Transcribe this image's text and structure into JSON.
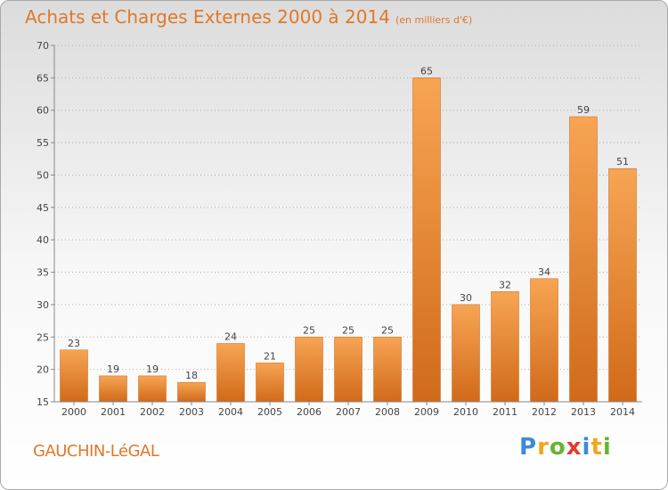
{
  "chart_data": {
    "type": "bar",
    "title": "Achats et Charges Externes 2000 à 2014",
    "subtitle": "(en milliers d'€)",
    "categories": [
      "2000",
      "2001",
      "2002",
      "2003",
      "2004",
      "2005",
      "2006",
      "2007",
      "2008",
      "2009",
      "2010",
      "2011",
      "2012",
      "2013",
      "2014"
    ],
    "values": [
      23,
      19,
      19,
      18,
      24,
      21,
      25,
      25,
      25,
      65,
      30,
      32,
      34,
      59,
      51
    ],
    "ylim": [
      15,
      70
    ],
    "yticks": [
      15,
      20,
      25,
      30,
      35,
      40,
      45,
      50,
      55,
      60,
      65,
      70
    ],
    "grid": true,
    "bar_color": "#f0913f"
  },
  "place_name": "GAUCHIN-LéGAL",
  "logo": {
    "text": "Proxiti"
  }
}
